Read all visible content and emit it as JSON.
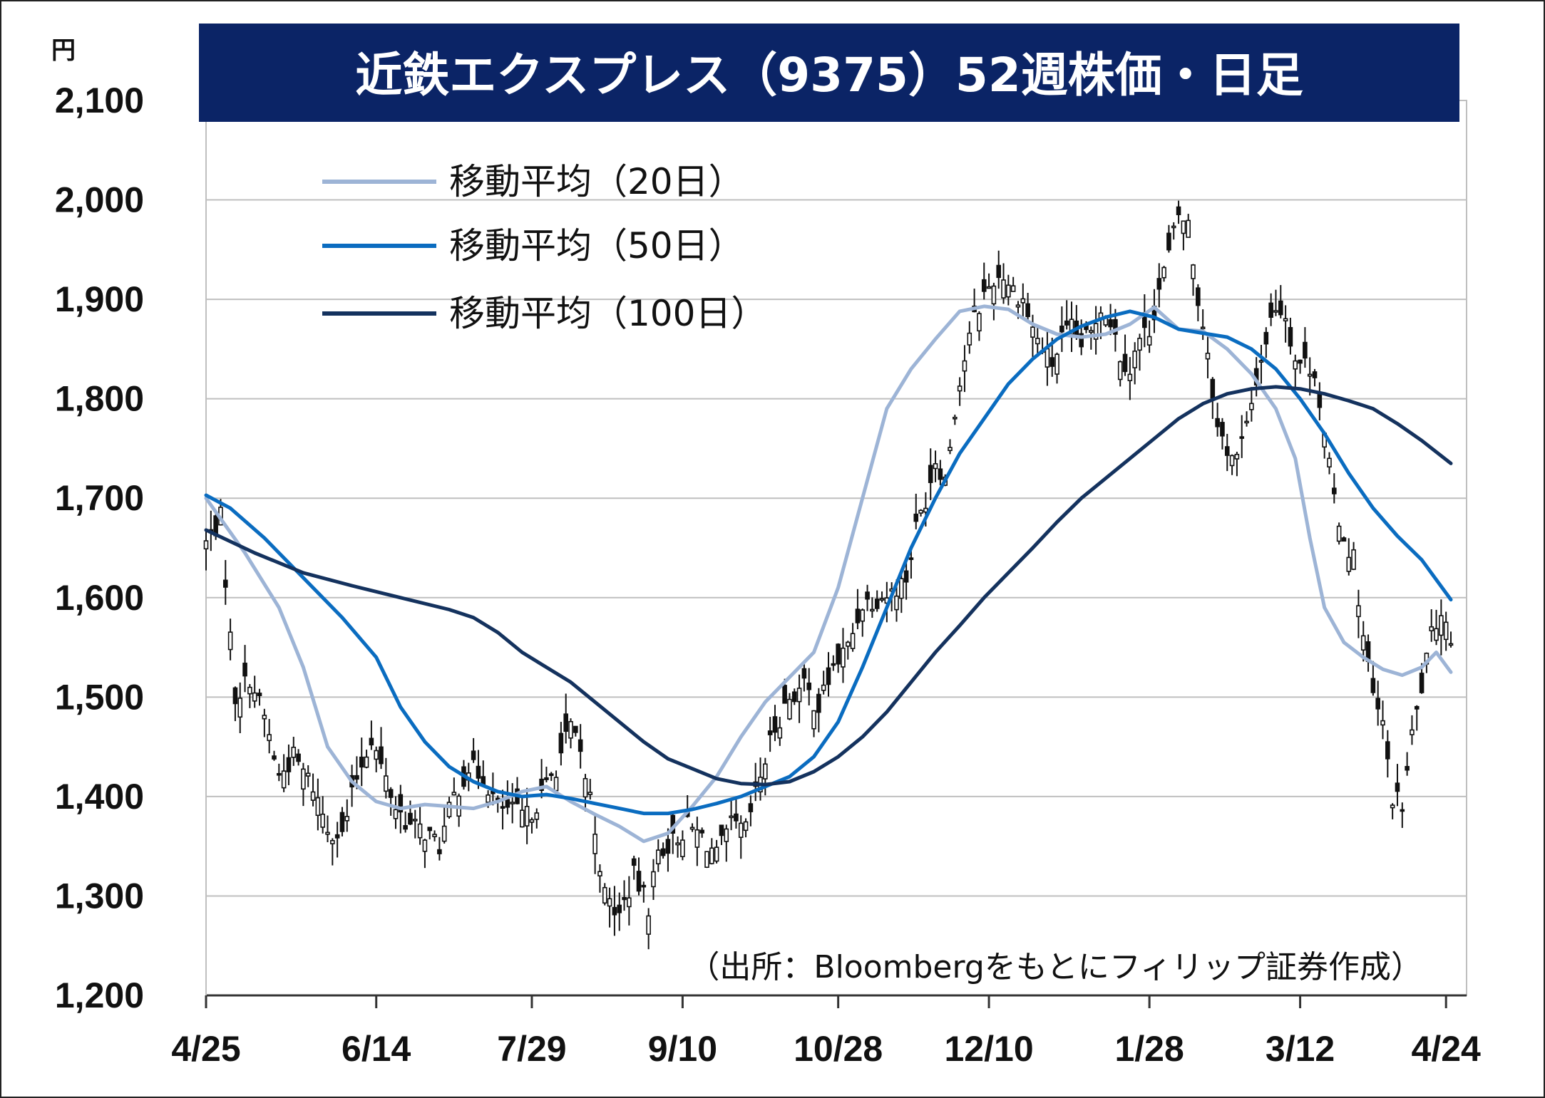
{
  "chart_data": {
    "type": "candlestick-line",
    "title": "近鉄エクスプレス（9375）52週株価・日足",
    "unit_label": "円",
    "source_note": "（出所：Bloombergをもとにフィリップ証券作成）",
    "ylim": [
      1200,
      2100
    ],
    "y_ticks": [
      "2,100",
      "2,000",
      "1,900",
      "1,800",
      "1,700",
      "1,600",
      "1,500",
      "1,400",
      "1,300",
      "1,200"
    ],
    "y_tick_values": [
      2100,
      2000,
      1900,
      1800,
      1700,
      1600,
      1500,
      1400,
      1300,
      1200
    ],
    "x_ticks": [
      "4/25",
      "6/14",
      "7/29",
      "9/10",
      "10/28",
      "12/10",
      "1/28",
      "3/12",
      "4/24"
    ],
    "x_tick_index": [
      0,
      35,
      67,
      98,
      130,
      161,
      194,
      225,
      255
    ],
    "grid": true,
    "legend_position": "top-left",
    "colors": {
      "title_bg": "#0b2466",
      "ma20": "#9db4d6",
      "ma50": "#0a6cc0",
      "ma100": "#14325e",
      "candle": "#111111",
      "grid": "#bfbfbf"
    },
    "series": [
      {
        "name": "移動平均（20日）",
        "color": "#9db4d6",
        "points": [
          [
            0,
            1700
          ],
          [
            8,
            1645
          ],
          [
            15,
            1590
          ],
          [
            20,
            1530
          ],
          [
            25,
            1450
          ],
          [
            30,
            1415
          ],
          [
            35,
            1395
          ],
          [
            40,
            1388
          ],
          [
            45,
            1392
          ],
          [
            50,
            1390
          ],
          [
            55,
            1388
          ],
          [
            60,
            1395
          ],
          [
            65,
            1405
          ],
          [
            70,
            1410
          ],
          [
            75,
            1395
          ],
          [
            80,
            1382
          ],
          [
            85,
            1370
          ],
          [
            90,
            1355
          ],
          [
            95,
            1363
          ],
          [
            100,
            1390
          ],
          [
            105,
            1420
          ],
          [
            110,
            1460
          ],
          [
            115,
            1495
          ],
          [
            120,
            1520
          ],
          [
            125,
            1545
          ],
          [
            130,
            1610
          ],
          [
            135,
            1700
          ],
          [
            140,
            1790
          ],
          [
            145,
            1830
          ],
          [
            150,
            1860
          ],
          [
            155,
            1888
          ],
          [
            160,
            1893
          ],
          [
            165,
            1890
          ],
          [
            170,
            1875
          ],
          [
            175,
            1865
          ],
          [
            180,
            1862
          ],
          [
            185,
            1865
          ],
          [
            190,
            1875
          ],
          [
            195,
            1892
          ],
          [
            200,
            1870
          ],
          [
            205,
            1868
          ],
          [
            210,
            1850
          ],
          [
            215,
            1825
          ],
          [
            220,
            1790
          ],
          [
            224,
            1740
          ],
          [
            227,
            1660
          ],
          [
            230,
            1590
          ],
          [
            234,
            1555
          ],
          [
            238,
            1540
          ],
          [
            242,
            1528
          ],
          [
            246,
            1522
          ],
          [
            250,
            1530
          ],
          [
            253,
            1545
          ],
          [
            256,
            1525
          ]
        ]
      },
      {
        "name": "移動平均（50日）",
        "color": "#0a6cc0",
        "points": [
          [
            0,
            1703
          ],
          [
            5,
            1690
          ],
          [
            12,
            1660
          ],
          [
            20,
            1620
          ],
          [
            28,
            1580
          ],
          [
            35,
            1540
          ],
          [
            40,
            1490
          ],
          [
            45,
            1455
          ],
          [
            50,
            1430
          ],
          [
            55,
            1415
          ],
          [
            60,
            1405
          ],
          [
            65,
            1400
          ],
          [
            70,
            1402
          ],
          [
            75,
            1398
          ],
          [
            80,
            1393
          ],
          [
            85,
            1388
          ],
          [
            90,
            1383
          ],
          [
            95,
            1383
          ],
          [
            100,
            1387
          ],
          [
            105,
            1393
          ],
          [
            110,
            1400
          ],
          [
            115,
            1410
          ],
          [
            120,
            1420
          ],
          [
            125,
            1440
          ],
          [
            130,
            1475
          ],
          [
            135,
            1530
          ],
          [
            140,
            1590
          ],
          [
            145,
            1650
          ],
          [
            150,
            1700
          ],
          [
            155,
            1745
          ],
          [
            160,
            1780
          ],
          [
            165,
            1815
          ],
          [
            170,
            1840
          ],
          [
            175,
            1860
          ],
          [
            180,
            1873
          ],
          [
            185,
            1882
          ],
          [
            190,
            1888
          ],
          [
            195,
            1882
          ],
          [
            200,
            1870
          ],
          [
            205,
            1866
          ],
          [
            210,
            1862
          ],
          [
            215,
            1850
          ],
          [
            220,
            1830
          ],
          [
            225,
            1800
          ],
          [
            230,
            1765
          ],
          [
            235,
            1725
          ],
          [
            240,
            1690
          ],
          [
            245,
            1662
          ],
          [
            250,
            1638
          ],
          [
            256,
            1598
          ]
        ]
      },
      {
        "name": "移動平均（100日）",
        "color": "#14325e",
        "points": [
          [
            0,
            1668
          ],
          [
            10,
            1645
          ],
          [
            20,
            1625
          ],
          [
            30,
            1612
          ],
          [
            40,
            1600
          ],
          [
            50,
            1588
          ],
          [
            55,
            1580
          ],
          [
            60,
            1565
          ],
          [
            65,
            1545
          ],
          [
            70,
            1530
          ],
          [
            75,
            1515
          ],
          [
            80,
            1495
          ],
          [
            85,
            1475
          ],
          [
            90,
            1455
          ],
          [
            95,
            1438
          ],
          [
            100,
            1428
          ],
          [
            105,
            1418
          ],
          [
            110,
            1413
          ],
          [
            115,
            1412
          ],
          [
            120,
            1415
          ],
          [
            125,
            1425
          ],
          [
            130,
            1440
          ],
          [
            135,
            1460
          ],
          [
            140,
            1485
          ],
          [
            145,
            1515
          ],
          [
            150,
            1545
          ],
          [
            155,
            1572
          ],
          [
            160,
            1600
          ],
          [
            165,
            1625
          ],
          [
            170,
            1650
          ],
          [
            175,
            1676
          ],
          [
            180,
            1700
          ],
          [
            185,
            1720
          ],
          [
            190,
            1740
          ],
          [
            195,
            1760
          ],
          [
            200,
            1780
          ],
          [
            205,
            1795
          ],
          [
            210,
            1805
          ],
          [
            215,
            1810
          ],
          [
            220,
            1812
          ],
          [
            225,
            1810
          ],
          [
            230,
            1805
          ],
          [
            235,
            1798
          ],
          [
            240,
            1790
          ],
          [
            245,
            1775
          ],
          [
            250,
            1758
          ],
          [
            256,
            1735
          ]
        ]
      }
    ],
    "price_path": [
      [
        0,
        1655
      ],
      [
        3,
        1680
      ],
      [
        6,
        1500
      ],
      [
        9,
        1520
      ],
      [
        12,
        1480
      ],
      [
        15,
        1420
      ],
      [
        18,
        1440
      ],
      [
        22,
        1410
      ],
      [
        25,
        1370
      ],
      [
        28,
        1360
      ],
      [
        31,
        1420
      ],
      [
        34,
        1460
      ],
      [
        36,
        1430
      ],
      [
        39,
        1390
      ],
      [
        42,
        1370
      ],
      [
        45,
        1365
      ],
      [
        48,
        1350
      ],
      [
        51,
        1400
      ],
      [
        54,
        1430
      ],
      [
        57,
        1420
      ],
      [
        60,
        1390
      ],
      [
        63,
        1385
      ],
      [
        66,
        1380
      ],
      [
        69,
        1400
      ],
      [
        72,
        1430
      ],
      [
        75,
        1470
      ],
      [
        77,
        1440
      ],
      [
        79,
        1400
      ],
      [
        82,
        1300
      ],
      [
        85,
        1280
      ],
      [
        88,
        1320
      ],
      [
        91,
        1290
      ],
      [
        93,
        1345
      ],
      [
        96,
        1355
      ],
      [
        99,
        1370
      ],
      [
        102,
        1360
      ],
      [
        105,
        1340
      ],
      [
        108,
        1370
      ],
      [
        111,
        1365
      ],
      [
        114,
        1420
      ],
      [
        117,
        1470
      ],
      [
        120,
        1500
      ],
      [
        123,
        1510
      ],
      [
        126,
        1490
      ],
      [
        129,
        1530
      ],
      [
        132,
        1550
      ],
      [
        135,
        1595
      ],
      [
        138,
        1600
      ],
      [
        141,
        1605
      ],
      [
        144,
        1620
      ],
      [
        146,
        1670
      ],
      [
        148,
        1700
      ],
      [
        150,
        1740
      ],
      [
        152,
        1720
      ],
      [
        154,
        1790
      ],
      [
        156,
        1840
      ],
      [
        158,
        1880
      ],
      [
        160,
        1905
      ],
      [
        162,
        1920
      ],
      [
        164,
        1925
      ],
      [
        166,
        1910
      ],
      [
        168,
        1900
      ],
      [
        170,
        1870
      ],
      [
        172,
        1850
      ],
      [
        174,
        1835
      ],
      [
        176,
        1860
      ],
      [
        178,
        1870
      ],
      [
        180,
        1855
      ],
      [
        182,
        1865
      ],
      [
        184,
        1895
      ],
      [
        186,
        1880
      ],
      [
        188,
        1845
      ],
      [
        190,
        1830
      ],
      [
        192,
        1860
      ],
      [
        194,
        1870
      ],
      [
        196,
        1910
      ],
      [
        198,
        1945
      ],
      [
        200,
        1985
      ],
      [
        202,
        1975
      ],
      [
        204,
        1900
      ],
      [
        206,
        1850
      ],
      [
        208,
        1770
      ],
      [
        210,
        1750
      ],
      [
        212,
        1740
      ],
      [
        214,
        1770
      ],
      [
        216,
        1820
      ],
      [
        218,
        1860
      ],
      [
        220,
        1895
      ],
      [
        222,
        1885
      ],
      [
        224,
        1840
      ],
      [
        226,
        1835
      ],
      [
        228,
        1830
      ],
      [
        230,
        1760
      ],
      [
        232,
        1700
      ],
      [
        234,
        1660
      ],
      [
        236,
        1640
      ],
      [
        238,
        1560
      ],
      [
        240,
        1500
      ],
      [
        242,
        1470
      ],
      [
        244,
        1400
      ],
      [
        246,
        1390
      ],
      [
        248,
        1460
      ],
      [
        250,
        1510
      ],
      [
        252,
        1560
      ],
      [
        254,
        1590
      ],
      [
        256,
        1560
      ]
    ]
  }
}
